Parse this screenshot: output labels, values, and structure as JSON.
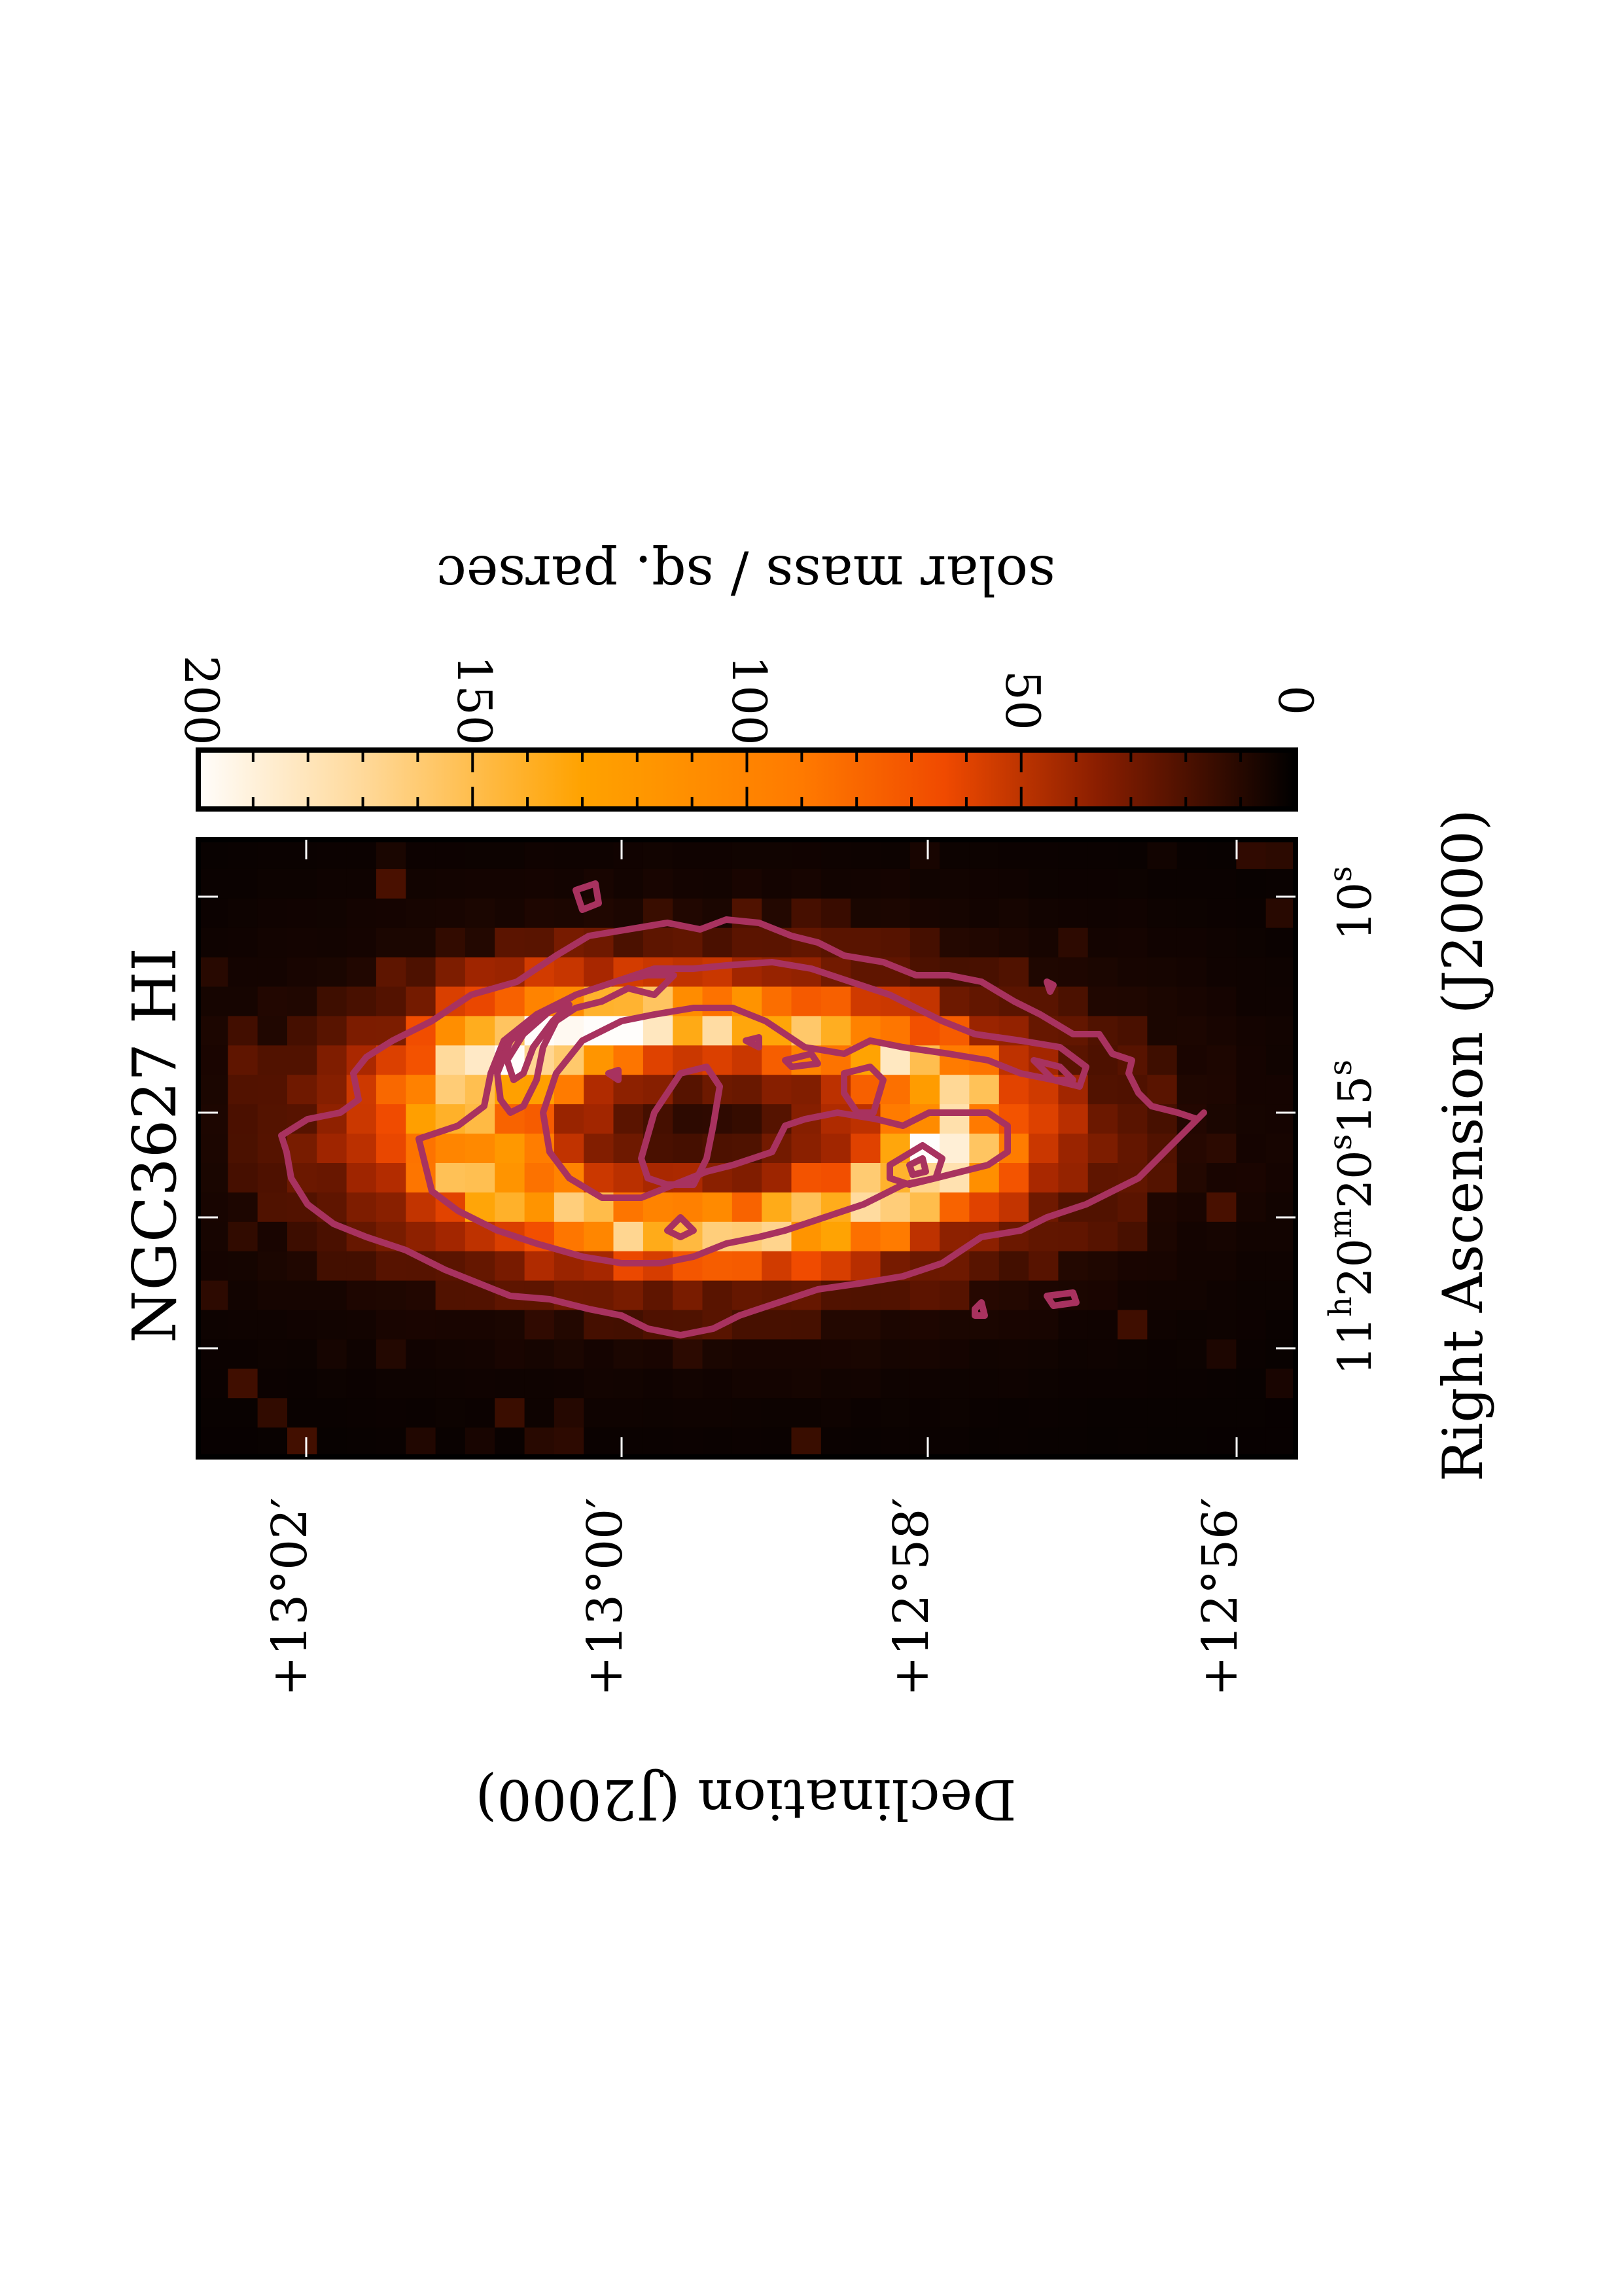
{
  "title": "NGC3627 HI",
  "colorbar": {
    "label": "solar mass / sq. parsec",
    "ticks": [
      "0",
      "50",
      "100",
      "150",
      "200"
    ],
    "range": [
      0,
      200
    ]
  },
  "axes": {
    "ra_label": "Right Ascension (J2000)",
    "dec_label": "Declination (J2000)",
    "ra_ticks": [
      {
        "h": "11",
        "hsup": "h",
        "m": "20",
        "msup": "m",
        "s": "20",
        "ssup": "s",
        "frac": "",
        "tail": "15",
        "tailsup": "s"
      },
      {
        "s": "10",
        "ssup": "s"
      }
    ],
    "dec_ticks": [
      "+13°02′",
      "+13°00′",
      "+12°58′",
      "+12°56′"
    ]
  },
  "colors": {
    "contour": "#a8325f",
    "frame": "#000000",
    "background": "#000000"
  },
  "chart_data": {
    "type": "heatmap",
    "title": "NGC3627 HI",
    "xlabel": "Right Ascension (J2000)",
    "ylabel": "Declination (J2000)",
    "colorbar_label": "solar mass / sq. parsec",
    "value_range": [
      0,
      200
    ],
    "colormap": "black-red-orange-white",
    "x_ticks": [
      "11h20m20s",
      "15s",
      "10s"
    ],
    "y_ticks": [
      "+13°02′",
      "+13°00′",
      "+12°58′",
      "+12°56′"
    ],
    "contour_levels_approx": [
      20,
      80,
      140,
      190
    ],
    "features": {
      "central_depression_value": 10,
      "ring_peak_value": 200,
      "outer_disk_value": 60
    }
  }
}
